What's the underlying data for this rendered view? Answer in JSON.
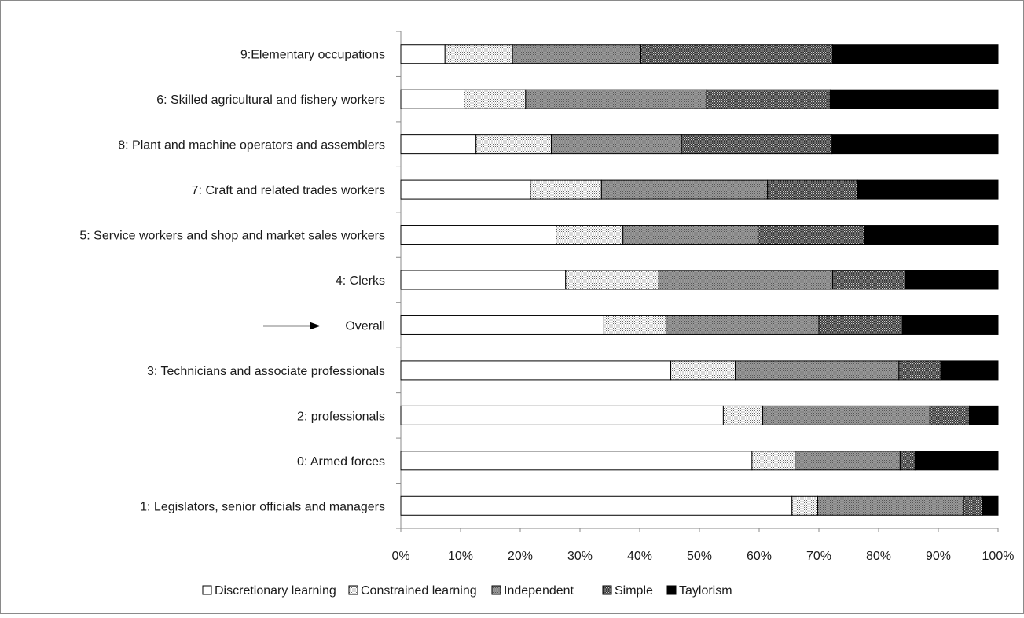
{
  "chart_data": {
    "type": "bar",
    "orientation": "horizontal",
    "stacked": true,
    "percent_stacked": true,
    "categories": [
      "1: Legislators, senior officials and managers",
      "0: Armed forces",
      "2: professionals",
      "3: Technicians and associate professionals",
      "Overall",
      "4: Clerks",
      "5: Service workers and shop and market sales workers",
      "7: Craft and related trades workers",
      "8: Plant and machine operators and assemblers",
      "6: Skilled agricultural and fishery workers",
      "9:Elementary occupations"
    ],
    "series": [
      {
        "name": "Discretionary learning",
        "values": [
          65.5,
          58.8,
          54.0,
          45.2,
          34.0,
          27.6,
          26.0,
          21.7,
          12.6,
          10.6,
          7.4
        ]
      },
      {
        "name": "Constrained learning",
        "values": [
          4.3,
          7.2,
          6.6,
          10.8,
          10.4,
          15.6,
          11.2,
          11.9,
          12.6,
          10.3,
          11.3
        ]
      },
      {
        "name": "Independent",
        "values": [
          24.4,
          17.6,
          28.0,
          27.4,
          25.6,
          29.1,
          22.6,
          27.8,
          21.8,
          30.3,
          21.5
        ]
      },
      {
        "name": "Simple",
        "values": [
          3.2,
          2.5,
          6.6,
          7.0,
          14.0,
          12.2,
          17.8,
          15.1,
          25.2,
          20.7,
          32.1
        ]
      },
      {
        "name": "Taylorism",
        "values": [
          2.6,
          13.9,
          4.8,
          9.6,
          16.0,
          15.5,
          22.4,
          23.5,
          27.8,
          28.1,
          27.7
        ]
      }
    ],
    "x_ticks": [
      "0%",
      "10%",
      "20%",
      "30%",
      "40%",
      "50%",
      "60%",
      "70%",
      "80%",
      "90%",
      "100%"
    ],
    "xlim": [
      0,
      100
    ],
    "annotation": {
      "type": "arrow",
      "points_to": "Overall"
    },
    "legend_position": "bottom",
    "grid": false,
    "colors": {
      "Discretionary learning": "#ffffff",
      "Constrained learning": "#d6d6d6",
      "Independent": "#8c8c8c",
      "Simple": "#4a4a4a",
      "Taylorism": "#000000"
    }
  }
}
